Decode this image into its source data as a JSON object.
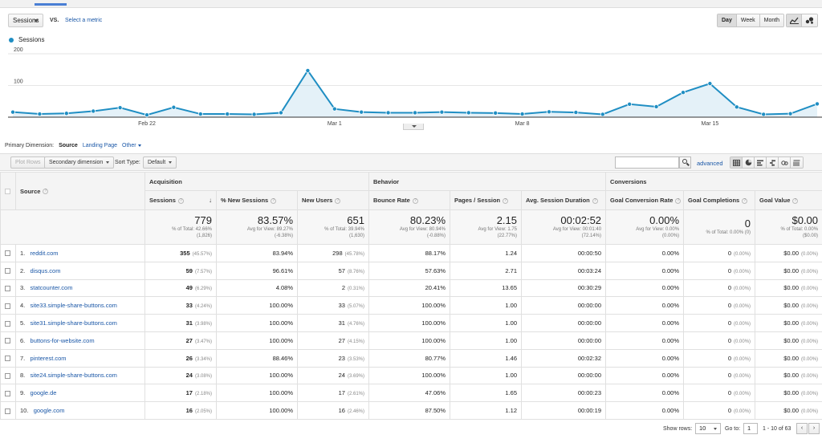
{
  "metric_selector": {
    "selected": "Sessions",
    "vs_label": "VS.",
    "select_metric": "Select a metric"
  },
  "period": {
    "buttons": [
      "Day",
      "Week",
      "Month"
    ],
    "active": "Day"
  },
  "chart_icons": [
    "line-chart-icon",
    "motion-chart-icon"
  ],
  "chart_data": {
    "type": "area",
    "series": [
      {
        "name": "Sessions",
        "color": "#1f8ec3",
        "values": [
          16,
          10,
          12,
          19,
          30,
          7,
          31,
          10,
          10,
          9,
          14,
          147,
          26,
          16,
          14,
          14,
          16,
          14,
          13,
          10,
          17,
          15,
          9,
          41,
          33,
          78,
          106,
          32,
          9,
          11,
          42
        ]
      }
    ],
    "x": [
      "Feb 17",
      "Feb 18",
      "Feb 19",
      "Feb 20",
      "Feb 21",
      "Feb 22",
      "Feb 23",
      "Feb 24",
      "Feb 25",
      "Feb 26",
      "Feb 27",
      "Feb 28",
      "Mar 1",
      "Mar 2",
      "Mar 3",
      "Mar 4",
      "Mar 5",
      "Mar 6",
      "Mar 7",
      "Mar 8",
      "Mar 9",
      "Mar 10",
      "Mar 11",
      "Mar 12",
      "Mar 13",
      "Mar 14",
      "Mar 15",
      "Mar 16",
      "Mar 17",
      "Mar 18",
      "Mar 19"
    ],
    "xtick_labels": [
      "Feb 22",
      "Mar 1",
      "Mar 8",
      "Mar 15"
    ],
    "ytick_labels": [
      "200",
      "100"
    ],
    "ylim": [
      0,
      200
    ],
    "grid": true,
    "legend": "top-left"
  },
  "primary_dimension": {
    "label": "Primary Dimension:",
    "active": "Source",
    "options": [
      "Landing Page",
      "Other"
    ]
  },
  "toolbar": {
    "plot_rows": "Plot Rows",
    "secondary_dimension": "Secondary dimension",
    "sort_type_label": "Sort Type:",
    "sort_type_value": "Default",
    "search_placeholder": "",
    "advanced": "advanced"
  },
  "table": {
    "groups": [
      "Acquisition",
      "Behavior",
      "Conversions"
    ],
    "source_header": "Source",
    "columns": [
      "Sessions",
      "% New Sessions",
      "New Users",
      "Bounce Rate",
      "Pages / Session",
      "Avg. Session Duration",
      "Goal Conversion Rate",
      "Goal Completions",
      "Goal Value"
    ],
    "totals": [
      {
        "value": "779",
        "sub1": "% of Total: 42.66%",
        "sub2": "(1,826)"
      },
      {
        "value": "83.57%",
        "sub1": "Avg for View: 89.27%",
        "sub2": "(-6.38%)"
      },
      {
        "value": "651",
        "sub1": "% of Total: 39.94%",
        "sub2": "(1,630)"
      },
      {
        "value": "80.23%",
        "sub1": "Avg for View: 80.94%",
        "sub2": "(-0.88%)"
      },
      {
        "value": "2.15",
        "sub1": "Avg for View: 1.75",
        "sub2": "(22.77%)"
      },
      {
        "value": "00:02:52",
        "sub1": "Avg for View: 00:01:40",
        "sub2": "(72.14%)"
      },
      {
        "value": "0.00%",
        "sub1": "Avg for View: 0.00%",
        "sub2": "(0.00%)"
      },
      {
        "value": "0",
        "sub1": "% of Total: 0.00% (0)",
        "sub2": ""
      },
      {
        "value": "$0.00",
        "sub1": "% of Total: 0.00%",
        "sub2": "($0.00)"
      }
    ],
    "rows": [
      {
        "rank": "1.",
        "source": "reddit.com",
        "sessions": "355",
        "sessions_pct": "(45.57%)",
        "new_sessions": "83.94%",
        "new_users": "298",
        "new_users_pct": "(45.78%)",
        "bounce": "88.17%",
        "pages": "1.24",
        "duration": "00:00:50",
        "gcr": "0.00%",
        "gc": "0",
        "gc_pct": "(0.00%)",
        "gv": "$0.00",
        "gv_pct": "(0.00%)"
      },
      {
        "rank": "2.",
        "source": "disqus.com",
        "sessions": "59",
        "sessions_pct": "(7.57%)",
        "new_sessions": "96.61%",
        "new_users": "57",
        "new_users_pct": "(8.76%)",
        "bounce": "57.63%",
        "pages": "2.71",
        "duration": "00:03:24",
        "gcr": "0.00%",
        "gc": "0",
        "gc_pct": "(0.00%)",
        "gv": "$0.00",
        "gv_pct": "(0.00%)"
      },
      {
        "rank": "3.",
        "source": "statcounter.com",
        "sessions": "49",
        "sessions_pct": "(6.29%)",
        "new_sessions": "4.08%",
        "new_users": "2",
        "new_users_pct": "(0.31%)",
        "bounce": "20.41%",
        "pages": "13.65",
        "duration": "00:30:29",
        "gcr": "0.00%",
        "gc": "0",
        "gc_pct": "(0.00%)",
        "gv": "$0.00",
        "gv_pct": "(0.00%)"
      },
      {
        "rank": "4.",
        "source": "site33.simple-share-buttons.com",
        "sessions": "33",
        "sessions_pct": "(4.24%)",
        "new_sessions": "100.00%",
        "new_users": "33",
        "new_users_pct": "(5.07%)",
        "bounce": "100.00%",
        "pages": "1.00",
        "duration": "00:00:00",
        "gcr": "0.00%",
        "gc": "0",
        "gc_pct": "(0.00%)",
        "gv": "$0.00",
        "gv_pct": "(0.00%)"
      },
      {
        "rank": "5.",
        "source": "site31.simple-share-buttons.com",
        "sessions": "31",
        "sessions_pct": "(3.98%)",
        "new_sessions": "100.00%",
        "new_users": "31",
        "new_users_pct": "(4.76%)",
        "bounce": "100.00%",
        "pages": "1.00",
        "duration": "00:00:00",
        "gcr": "0.00%",
        "gc": "0",
        "gc_pct": "(0.00%)",
        "gv": "$0.00",
        "gv_pct": "(0.00%)"
      },
      {
        "rank": "6.",
        "source": "buttons-for-website.com",
        "sessions": "27",
        "sessions_pct": "(3.47%)",
        "new_sessions": "100.00%",
        "new_users": "27",
        "new_users_pct": "(4.15%)",
        "bounce": "100.00%",
        "pages": "1.00",
        "duration": "00:00:00",
        "gcr": "0.00%",
        "gc": "0",
        "gc_pct": "(0.00%)",
        "gv": "$0.00",
        "gv_pct": "(0.00%)"
      },
      {
        "rank": "7.",
        "source": "pinterest.com",
        "sessions": "26",
        "sessions_pct": "(3.34%)",
        "new_sessions": "88.46%",
        "new_users": "23",
        "new_users_pct": "(3.53%)",
        "bounce": "80.77%",
        "pages": "1.46",
        "duration": "00:02:32",
        "gcr": "0.00%",
        "gc": "0",
        "gc_pct": "(0.00%)",
        "gv": "$0.00",
        "gv_pct": "(0.00%)"
      },
      {
        "rank": "8.",
        "source": "site24.simple-share-buttons.com",
        "sessions": "24",
        "sessions_pct": "(3.08%)",
        "new_sessions": "100.00%",
        "new_users": "24",
        "new_users_pct": "(3.69%)",
        "bounce": "100.00%",
        "pages": "1.00",
        "duration": "00:00:00",
        "gcr": "0.00%",
        "gc": "0",
        "gc_pct": "(0.00%)",
        "gv": "$0.00",
        "gv_pct": "(0.00%)"
      },
      {
        "rank": "9.",
        "source": "google.de",
        "sessions": "17",
        "sessions_pct": "(2.18%)",
        "new_sessions": "100.00%",
        "new_users": "17",
        "new_users_pct": "(2.61%)",
        "bounce": "47.06%",
        "pages": "1.65",
        "duration": "00:00:23",
        "gcr": "0.00%",
        "gc": "0",
        "gc_pct": "(0.00%)",
        "gv": "$0.00",
        "gv_pct": "(0.00%)"
      },
      {
        "rank": "10.",
        "source": "google.com",
        "sessions": "16",
        "sessions_pct": "(2.05%)",
        "new_sessions": "100.00%",
        "new_users": "16",
        "new_users_pct": "(2.46%)",
        "bounce": "87.50%",
        "pages": "1.12",
        "duration": "00:00:19",
        "gcr": "0.00%",
        "gc": "0",
        "gc_pct": "(0.00%)",
        "gv": "$0.00",
        "gv_pct": "(0.00%)"
      }
    ]
  },
  "pagination": {
    "show_rows_label": "Show rows:",
    "show_rows_value": "10",
    "goto_label": "Go to:",
    "goto_value": "1",
    "range": "1 - 10 of 63",
    "prev": "‹",
    "next": "›"
  }
}
